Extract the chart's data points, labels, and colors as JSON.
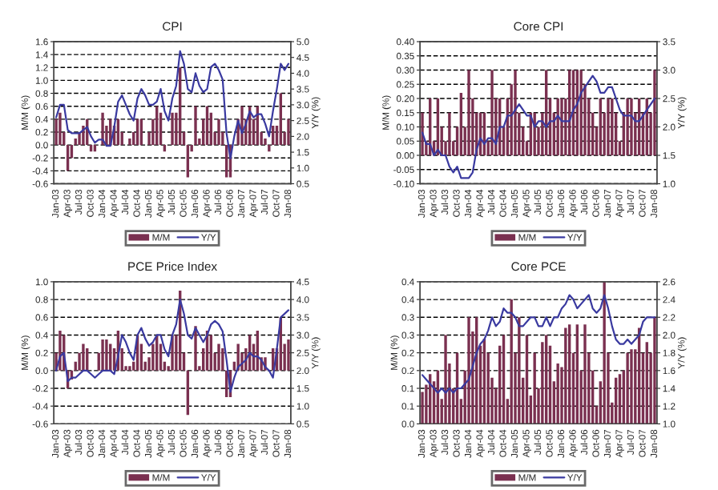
{
  "chart_data": [
    {
      "type": "bar",
      "title": "CPI",
      "ylabel": "M/M (%)",
      "y2label": "Y/Y (%)",
      "categories": [
        "Jan-03",
        null,
        null,
        "Apr-03",
        null,
        null,
        "Jul-03",
        null,
        null,
        "Oct-03",
        null,
        null,
        "Jan-04",
        null,
        null,
        "Apr-04",
        null,
        null,
        "Jul-04",
        null,
        null,
        "Oct-04",
        null,
        null,
        "Jan-05",
        null,
        null,
        "Apr-05",
        null,
        null,
        "Jul-05",
        null,
        null,
        "Oct-05",
        null,
        null,
        "Jan-06",
        null,
        null,
        "Apr-06",
        null,
        null,
        "Jul-06",
        null,
        null,
        "Oct-06",
        null,
        null,
        "Jan-07",
        null,
        null,
        "Apr-07",
        null,
        null,
        "Jul-07",
        null,
        null,
        "Oct-07",
        null,
        null,
        "Jan-08"
      ],
      "series": [
        {
          "name": "M/M",
          "color": "#7a3050",
          "values": [
            0.4,
            0.5,
            0.2,
            -0.4,
            -0.2,
            0.1,
            0.2,
            0.3,
            0.4,
            -0.1,
            -0.1,
            0.0,
            0.5,
            0.3,
            0.4,
            0.3,
            0.4,
            0.2,
            0.0,
            0.1,
            0.2,
            0.4,
            0.4,
            0.0,
            0.2,
            0.4,
            0.6,
            0.5,
            -0.1,
            0.0,
            0.5,
            0.5,
            1.2,
            0.2,
            -0.5,
            -0.1,
            0.6,
            0.1,
            0.4,
            0.6,
            0.5,
            0.2,
            0.4,
            0.2,
            -0.5,
            -0.5,
            0.0,
            0.4,
            0.6,
            0.4,
            0.6,
            0.4,
            0.6,
            0.2,
            0.1,
            -0.1,
            0.3,
            0.3,
            0.8,
            0.2,
            0.4
          ]
        },
        {
          "name": "Y/Y",
          "type": "line",
          "axis": "y2",
          "color": "#3a3aa0",
          "values": [
            2.6,
            3.0,
            3.0,
            2.2,
            2.1,
            2.1,
            2.1,
            2.2,
            2.3,
            2.0,
            1.8,
            1.9,
            1.9,
            1.7,
            1.7,
            2.3,
            3.1,
            3.3,
            3.0,
            2.7,
            2.5,
            3.2,
            3.5,
            3.3,
            3.0,
            3.0,
            3.1,
            3.5,
            2.8,
            2.5,
            3.2,
            3.6,
            4.7,
            4.3,
            3.5,
            3.4,
            4.0,
            3.6,
            3.4,
            3.5,
            4.2,
            4.3,
            4.1,
            3.8,
            2.1,
            1.3,
            2.0,
            2.5,
            2.1,
            2.4,
            2.8,
            2.6,
            2.7,
            2.7,
            2.4,
            2.0,
            2.8,
            3.5,
            4.3,
            4.1,
            4.3
          ]
        }
      ],
      "ylim": [
        -0.6,
        1.6
      ],
      "yticks": [
        {
          "value": -0.6,
          "label": "-0.6"
        },
        {
          "value": -0.4,
          "label": "-0.4"
        },
        {
          "value": -0.2,
          "label": "-0.2"
        },
        {
          "value": 0.0,
          "label": "0.0"
        },
        {
          "value": 0.2,
          "label": "0.2"
        },
        {
          "value": 0.4,
          "label": "0.4"
        },
        {
          "value": 0.6,
          "label": "0.6"
        },
        {
          "value": 0.8,
          "label": "0.8"
        },
        {
          "value": 1.0,
          "label": "1.0"
        },
        {
          "value": 1.2,
          "label": "1.2"
        },
        {
          "value": 1.4,
          "label": "1.4"
        },
        {
          "value": 1.6,
          "label": "1.6"
        }
      ],
      "y2lim": [
        0.5,
        5.0
      ],
      "y2ticks": [
        {
          "value": 0.5,
          "label": "0.5"
        },
        {
          "value": 1.0,
          "label": "1.0"
        },
        {
          "value": 1.5,
          "label": "1.5"
        },
        {
          "value": 2.0,
          "label": "2.0"
        },
        {
          "value": 2.5,
          "label": "2.5"
        },
        {
          "value": 3.0,
          "label": "3.0"
        },
        {
          "value": 3.5,
          "label": "3.5"
        },
        {
          "value": 4.0,
          "label": "4.0"
        },
        {
          "value": 4.5,
          "label": "4.5"
        },
        {
          "value": 5.0,
          "label": "5.0"
        }
      ],
      "grid": "y",
      "legend": "bottom"
    },
    {
      "type": "bar",
      "title": "Core CPI",
      "ylabel": "M/M (%)",
      "y2label": "Y/Y (%)",
      "categories": [
        "Jan-03",
        null,
        null,
        "Apr-03",
        null,
        null,
        "Jul-03",
        null,
        null,
        "Oct-03",
        null,
        null,
        "Jan-04",
        null,
        null,
        "Apr-04",
        null,
        null,
        "Jul-04",
        null,
        null,
        "Oct-04",
        null,
        null,
        "Jan-05",
        null,
        null,
        "Apr-05",
        null,
        null,
        "Jul-05",
        null,
        null,
        "Oct-05",
        null,
        null,
        "Jan-06",
        null,
        null,
        "Apr-06",
        null,
        null,
        "Jul-06",
        null,
        null,
        "Oct-06",
        null,
        null,
        "Jan-07",
        null,
        null,
        "Apr-07",
        null,
        null,
        "Jul-07",
        null,
        null,
        "Oct-07",
        null,
        null,
        "Jan-08"
      ],
      "series": [
        {
          "name": "M/M",
          "color": "#7a3050",
          "values": [
            0.15,
            0.05,
            0.2,
            0.05,
            0.2,
            0.1,
            0.05,
            0.15,
            0.05,
            0.1,
            0.22,
            0.1,
            0.3,
            0.2,
            0.15,
            0.15,
            0.15,
            0.05,
            0.3,
            0.2,
            0.2,
            0.1,
            0.2,
            0.25,
            0.3,
            0.15,
            0.1,
            0.05,
            0.15,
            0.15,
            0.1,
            0.15,
            0.3,
            0.2,
            0.15,
            0.2,
            0.2,
            0.2,
            0.3,
            0.3,
            0.3,
            0.3,
            0.25,
            0.2,
            0.15,
            0.1,
            0.2,
            0.15,
            0.2,
            0.2,
            0.15,
            0.05,
            0.15,
            0.2,
            0.2,
            0.15,
            0.2,
            0.15,
            0.2,
            0.15,
            0.3
          ]
        },
        {
          "name": "Y/Y",
          "type": "line",
          "axis": "y2",
          "color": "#3a3aa0",
          "values": [
            1.9,
            1.7,
            1.7,
            1.5,
            1.6,
            1.5,
            1.5,
            1.3,
            1.2,
            1.3,
            1.1,
            1.1,
            1.1,
            1.2,
            1.6,
            1.8,
            1.7,
            1.8,
            1.8,
            1.7,
            2.0,
            2.0,
            2.2,
            2.2,
            2.3,
            2.4,
            2.3,
            2.2,
            2.2,
            2.0,
            2.1,
            2.1,
            2.0,
            2.1,
            2.1,
            2.2,
            2.1,
            2.1,
            2.1,
            2.3,
            2.4,
            2.6,
            2.7,
            2.8,
            2.9,
            2.8,
            2.6,
            2.6,
            2.7,
            2.7,
            2.5,
            2.3,
            2.2,
            2.2,
            2.2,
            2.1,
            2.1,
            2.2,
            2.3,
            2.4,
            2.5
          ]
        }
      ],
      "ylim": [
        -0.1,
        0.4
      ],
      "yticks": [
        {
          "value": -0.1,
          "label": "-0.10"
        },
        {
          "value": -0.05,
          "label": "-0.05"
        },
        {
          "value": 0.0,
          "label": "0.00"
        },
        {
          "value": 0.05,
          "label": "0.05"
        },
        {
          "value": 0.1,
          "label": "0.10"
        },
        {
          "value": 0.15,
          "label": "0.15"
        },
        {
          "value": 0.2,
          "label": "0.20"
        },
        {
          "value": 0.25,
          "label": "0.25"
        },
        {
          "value": 0.3,
          "label": "0.30"
        },
        {
          "value": 0.35,
          "label": "0.35"
        },
        {
          "value": 0.4,
          "label": "0.40"
        }
      ],
      "y2lim": [
        1.0,
        3.5
      ],
      "y2ticks": [
        {
          "value": 1.0,
          "label": "1.0"
        },
        {
          "value": 1.5,
          "label": "1.5"
        },
        {
          "value": 2.0,
          "label": "2.0"
        },
        {
          "value": 2.5,
          "label": "2.5"
        },
        {
          "value": 3.0,
          "label": "3.0"
        },
        {
          "value": 3.5,
          "label": "3.5"
        }
      ],
      "grid": "y",
      "legend": "bottom"
    },
    {
      "type": "bar",
      "title": "PCE Price Index",
      "ylabel": "M/M (%)",
      "y2label": "Y/Y (%)",
      "categories": [
        "Jan-03",
        null,
        null,
        "Apr-03",
        null,
        null,
        "Jul-03",
        null,
        null,
        "Oct-03",
        null,
        null,
        "Jan-04",
        null,
        null,
        "Apr-04",
        null,
        null,
        "Jul-04",
        null,
        null,
        "Oct-04",
        null,
        null,
        "Jan-05",
        null,
        null,
        "Apr-05",
        null,
        null,
        "Jul-05",
        null,
        null,
        "Oct-05",
        null,
        null,
        "Jan-06",
        null,
        null,
        "Apr-06",
        null,
        null,
        "Jul-06",
        null,
        null,
        "Oct-06",
        null,
        null,
        "Jan-07",
        null,
        null,
        "Apr-07",
        null,
        null,
        "Jul-07",
        null,
        null,
        "Oct-07",
        null,
        null,
        "Jan-08"
      ],
      "series": [
        {
          "name": "M/M",
          "color": "#7a3050",
          "values": [
            0.2,
            0.45,
            0.4,
            -0.2,
            -0.1,
            0.1,
            0.2,
            0.3,
            0.25,
            0.0,
            0.0,
            0.2,
            0.35,
            0.35,
            0.3,
            0.25,
            0.45,
            0.25,
            0.05,
            0.05,
            0.1,
            0.4,
            0.3,
            0.1,
            0.15,
            0.3,
            0.4,
            0.3,
            0.1,
            0.05,
            0.4,
            0.4,
            0.9,
            0.2,
            -0.5,
            0.0,
            0.5,
            0.05,
            0.25,
            0.45,
            0.4,
            0.2,
            0.3,
            0.25,
            -0.3,
            -0.3,
            0.1,
            0.3,
            0.2,
            0.25,
            0.4,
            0.3,
            0.45,
            0.15,
            0.15,
            0.0,
            0.25,
            0.25,
            0.6,
            0.3,
            0.35
          ]
        },
        {
          "name": "Y/Y",
          "type": "line",
          "axis": "y2",
          "color": "#3a3aa0",
          "values": [
            2.0,
            2.4,
            2.5,
            1.7,
            1.8,
            1.8,
            1.9,
            2.0,
            2.0,
            1.9,
            1.8,
            1.9,
            2.0,
            2.0,
            2.0,
            1.9,
            2.4,
            3.0,
            2.8,
            2.5,
            2.3,
            3.0,
            3.2,
            2.9,
            2.7,
            2.8,
            3.0,
            3.0,
            2.6,
            2.4,
            3.0,
            3.3,
            4.0,
            3.6,
            3.0,
            2.9,
            3.2,
            3.0,
            2.8,
            3.0,
            3.3,
            3.4,
            3.3,
            3.1,
            2.3,
            1.4,
            1.8,
            2.1,
            2.2,
            2.3,
            2.5,
            2.4,
            2.4,
            2.3,
            2.1,
            2.0,
            1.8,
            2.6,
            3.5,
            3.6,
            3.7
          ]
        }
      ],
      "ylim": [
        -0.6,
        1.0
      ],
      "yticks": [
        {
          "value": -0.6,
          "label": "-0.6"
        },
        {
          "value": -0.4,
          "label": "-0.4"
        },
        {
          "value": -0.2,
          "label": "-0.2"
        },
        {
          "value": 0.0,
          "label": "0.0"
        },
        {
          "value": 0.2,
          "label": "0.2"
        },
        {
          "value": 0.4,
          "label": "0.4"
        },
        {
          "value": 0.6,
          "label": "0.6"
        },
        {
          "value": 0.8,
          "label": "0.8"
        },
        {
          "value": 1.0,
          "label": "1.0"
        }
      ],
      "y2lim": [
        0.5,
        4.5
      ],
      "y2ticks": [
        {
          "value": 0.5,
          "label": "0.5"
        },
        {
          "value": 1.0,
          "label": "1.0"
        },
        {
          "value": 1.5,
          "label": "1.5"
        },
        {
          "value": 2.0,
          "label": "2.0"
        },
        {
          "value": 2.5,
          "label": "2.5"
        },
        {
          "value": 3.0,
          "label": "3.0"
        },
        {
          "value": 3.5,
          "label": "3.5"
        },
        {
          "value": 4.0,
          "label": "4.0"
        },
        {
          "value": 4.5,
          "label": "4.5"
        }
      ],
      "grid": "y",
      "legend": "bottom"
    },
    {
      "type": "bar",
      "title": "Core PCE",
      "ylabel": "M/M (%)",
      "y2label": "Y/Y (%)",
      "categories": [
        "Jan-03",
        null,
        null,
        "Apr-03",
        null,
        null,
        "Jul-03",
        null,
        null,
        "Oct-03",
        null,
        null,
        "Jan-04",
        null,
        null,
        "Apr-04",
        null,
        null,
        "Jul-04",
        null,
        null,
        "Oct-04",
        null,
        null,
        "Jan-05",
        null,
        null,
        "Apr-05",
        null,
        null,
        "Jul-05",
        null,
        null,
        "Oct-05",
        null,
        null,
        "Jan-06",
        null,
        null,
        "Apr-06",
        null,
        null,
        "Jul-06",
        null,
        null,
        "Oct-06",
        null,
        null,
        "Jan-07",
        null,
        null,
        "Apr-07",
        null,
        null,
        "Jul-07",
        null,
        null,
        "Oct-07",
        null,
        null,
        "Jan-08"
      ],
      "series": [
        {
          "name": "M/M",
          "color": "#7a3050",
          "values": [
            0.09,
            0.11,
            0.14,
            0.12,
            0.15,
            0.07,
            0.25,
            0.17,
            0.1,
            0.2,
            0.07,
            0.15,
            0.3,
            0.26,
            0.3,
            0.22,
            0.24,
            0.2,
            0.13,
            0.1,
            0.22,
            0.25,
            0.07,
            0.35,
            0.2,
            0.3,
            0.13,
            0.25,
            0.08,
            0.2,
            0.1,
            0.23,
            0.25,
            0.22,
            0.12,
            0.17,
            0.16,
            0.27,
            0.28,
            0.2,
            0.28,
            0.15,
            0.28,
            0.2,
            0.15,
            0.05,
            0.12,
            0.4,
            0.2,
            0.06,
            0.13,
            0.14,
            0.15,
            0.2,
            0.21,
            0.21,
            0.27,
            0.2,
            0.23,
            0.2,
            0.3
          ]
        },
        {
          "name": "Y/Y",
          "type": "line",
          "axis": "y2",
          "color": "#3a3aa0",
          "values": [
            1.55,
            1.5,
            1.45,
            1.4,
            1.35,
            1.4,
            1.35,
            1.4,
            1.35,
            1.4,
            1.4,
            1.45,
            1.5,
            1.65,
            1.8,
            1.9,
            1.95,
            2.05,
            2.2,
            2.1,
            2.15,
            2.3,
            2.25,
            2.25,
            2.2,
            2.1,
            2.1,
            2.15,
            2.2,
            2.2,
            2.1,
            2.1,
            2.2,
            2.1,
            2.2,
            2.2,
            2.3,
            2.35,
            2.45,
            2.4,
            2.3,
            2.35,
            2.4,
            2.45,
            2.3,
            2.25,
            2.3,
            2.45,
            2.3,
            2.1,
            1.95,
            1.9,
            1.9,
            1.95,
            1.9,
            1.95,
            2.0,
            2.15,
            2.2,
            2.2,
            2.2
          ]
        }
      ],
      "ylim": [
        0.0,
        0.4
      ],
      "yticks": [
        {
          "value": 0.0,
          "label": "0.0"
        },
        {
          "value": 0.05,
          "label": "0.1"
        },
        {
          "value": 0.1,
          "label": "0.1"
        },
        {
          "value": 0.15,
          "label": "0.2"
        },
        {
          "value": 0.2,
          "label": "0.2"
        },
        {
          "value": 0.25,
          "label": "0.3"
        },
        {
          "value": 0.3,
          "label": "0.3"
        },
        {
          "value": 0.35,
          "label": "0.4"
        },
        {
          "value": 0.4,
          "label": "0.4"
        }
      ],
      "y2lim": [
        1.0,
        2.6
      ],
      "y2ticks": [
        {
          "value": 1.0,
          "label": "1.0"
        },
        {
          "value": 1.2,
          "label": "1.2"
        },
        {
          "value": 1.4,
          "label": "1.4"
        },
        {
          "value": 1.6,
          "label": "1.6"
        },
        {
          "value": 1.8,
          "label": "1.8"
        },
        {
          "value": 2.0,
          "label": "2.0"
        },
        {
          "value": 2.2,
          "label": "2.2"
        },
        {
          "value": 2.4,
          "label": "2.4"
        },
        {
          "value": 2.6,
          "label": "2.6"
        }
      ],
      "grid": "y",
      "legend": "bottom"
    }
  ]
}
